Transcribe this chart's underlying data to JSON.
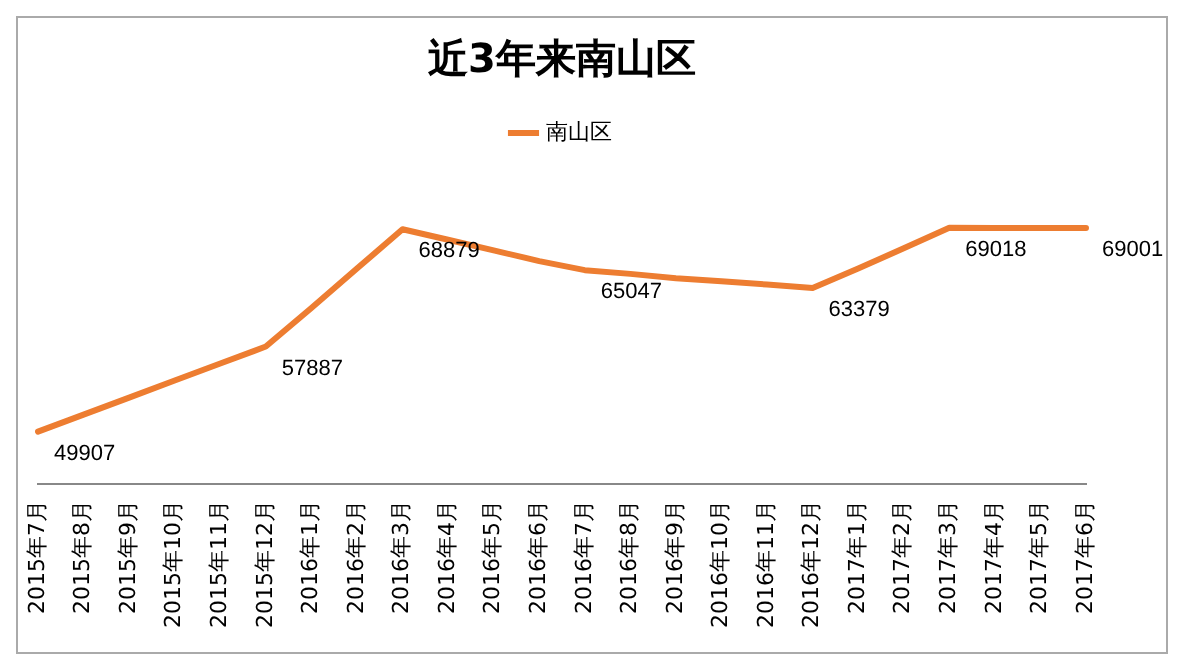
{
  "chart_data": {
    "type": "line",
    "title": "近3年来南山区",
    "categories": [
      "2015年7月",
      "2015年8月",
      "2015年9月",
      "2015年10月",
      "2015年11月",
      "2015年12月",
      "2016年1月",
      "2016年2月",
      "2016年3月",
      "2016年4月",
      "2016年5月",
      "2016年6月",
      "2016年7月",
      "2016年8月",
      "2016年9月",
      "2016年10月",
      "2016年11月",
      "2016年12月",
      "2017年1月",
      "2017年2月",
      "2017年3月",
      "2017年4月",
      "2017年5月",
      "2017年6月"
    ],
    "series": [
      {
        "name": "南山区",
        "color": "#ed7d31",
        "values": [
          49907,
          51500,
          53100,
          54700,
          56300,
          57887,
          61500,
          65200,
          68879,
          67900,
          66900,
          65900,
          65047,
          64700,
          64300,
          64000,
          63700,
          63379,
          65200,
          67100,
          69018,
          69010,
          69005,
          69001
        ],
        "value_labels": [
          "49907",
          null,
          null,
          null,
          null,
          "57887",
          null,
          null,
          "68879",
          null,
          null,
          null,
          "65047",
          null,
          null,
          null,
          null,
          "63379",
          null,
          null,
          "69018",
          null,
          null,
          "69001"
        ]
      }
    ],
    "legend": "top",
    "grid": false,
    "marker": "none",
    "line_style": "solid"
  }
}
